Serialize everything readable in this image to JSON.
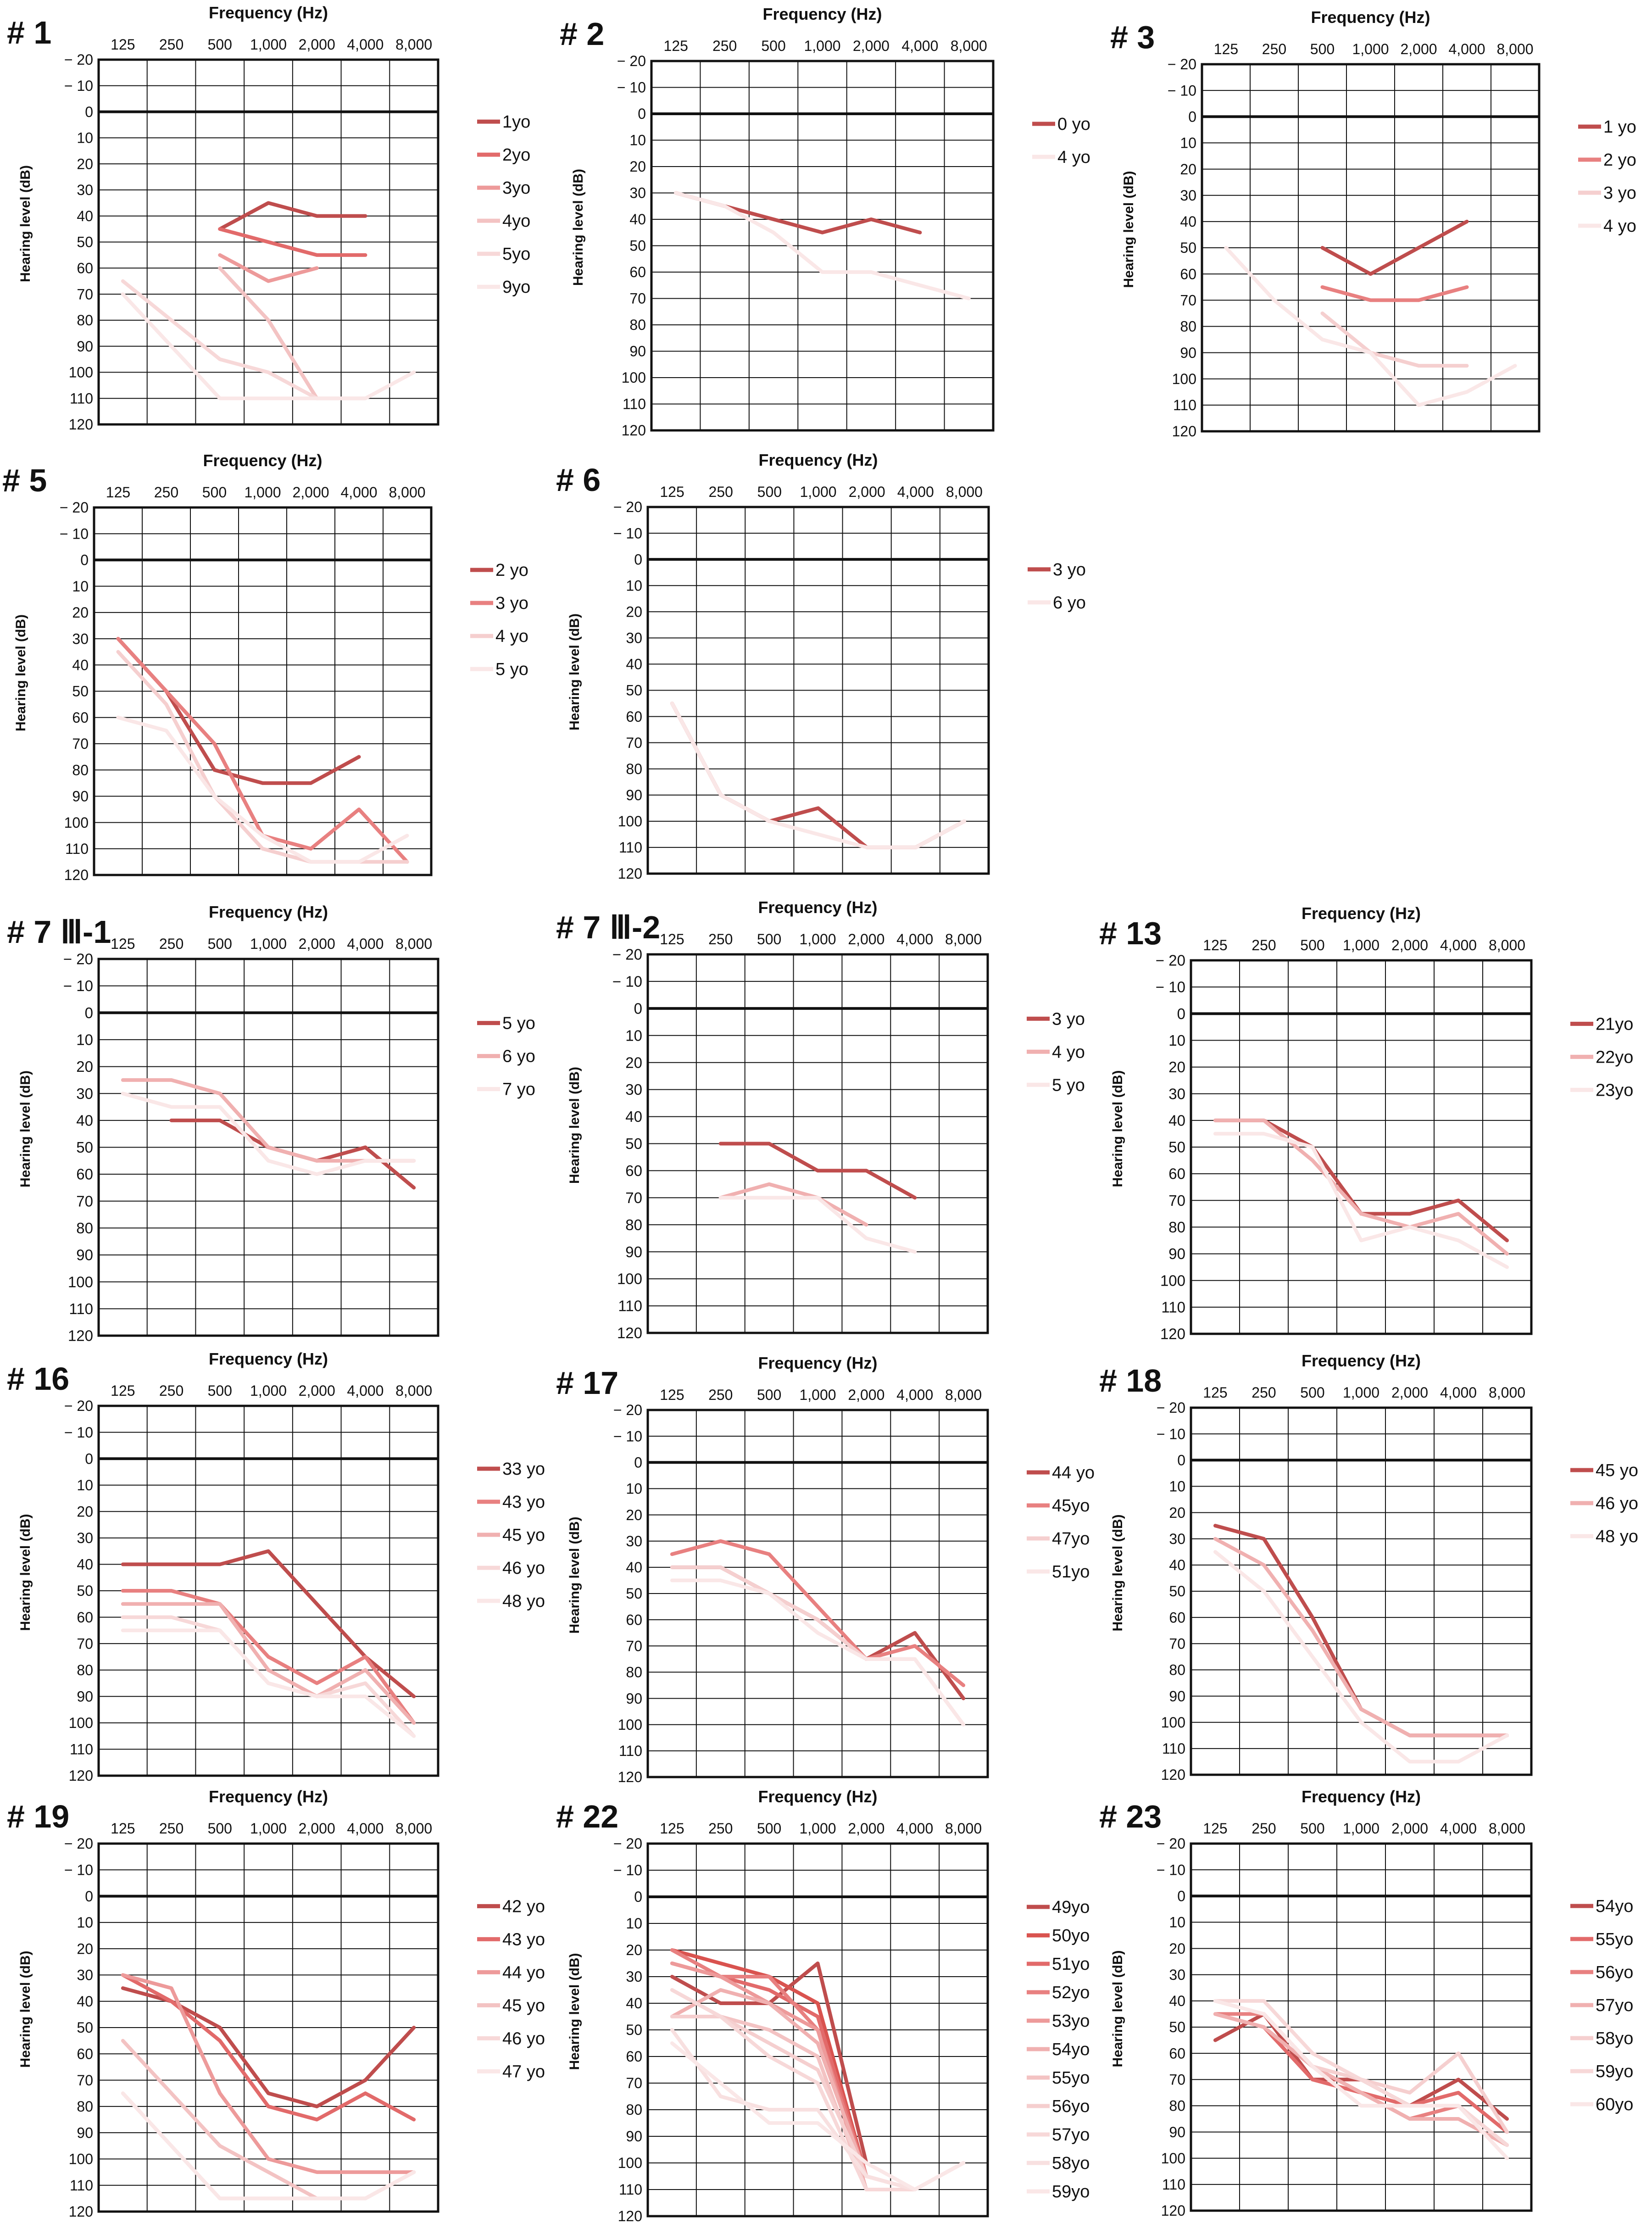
{
  "figure": {
    "common": {
      "xlabel": "Frequency (Hz)",
      "ylabel": "Hearing level (dB)",
      "x_ticks": [
        "125",
        "250",
        "500",
        "1,000",
        "2,000",
        "4,000",
        "8,000"
      ],
      "y_ticks": [
        "− 20",
        "− 10",
        "0",
        "10",
        "20",
        "30",
        "40",
        "50",
        "60",
        "70",
        "80",
        "90",
        "100",
        "110",
        "120"
      ],
      "ylim": [
        -20,
        120
      ]
    },
    "palette": [
      "#bf4d4d",
      "#d9534f",
      "#e26a6a",
      "#e88080",
      "#ed9a9a",
      "#f0b0b0",
      "#f3c3c3",
      "#f5cfcf",
      "#f7d8d8",
      "#f8e0e0",
      "#fae7e7"
    ]
  },
  "chart_data": [
    {
      "type": "line",
      "title": "# 1",
      "xlabel": "Frequency (Hz)",
      "ylabel": "Hearing level (dB)",
      "categories": [
        "125",
        "250",
        "500",
        "1,000",
        "2,000",
        "4,000",
        "8,000"
      ],
      "ylim": [
        -20,
        120
      ],
      "legend": "right",
      "series": [
        {
          "name": "1yo",
          "values": [
            null,
            null,
            45,
            35,
            40,
            40,
            null
          ]
        },
        {
          "name": "2yo",
          "values": [
            null,
            null,
            45,
            50,
            55,
            55,
            null
          ]
        },
        {
          "name": "3yo",
          "values": [
            null,
            null,
            55,
            65,
            60,
            null,
            null
          ]
        },
        {
          "name": "4yo",
          "values": [
            null,
            null,
            60,
            80,
            110,
            null,
            null
          ]
        },
        {
          "name": "5yo",
          "values": [
            65,
            80,
            95,
            100,
            110,
            110,
            null
          ]
        },
        {
          "name": "9yo",
          "values": [
            70,
            90,
            110,
            110,
            110,
            110,
            100
          ]
        }
      ]
    },
    {
      "type": "line",
      "title": "# 2",
      "xlabel": "Frequency (Hz)",
      "ylabel": "Hearing level (dB)",
      "categories": [
        "125",
        "250",
        "500",
        "1,000",
        "2,000",
        "4,000",
        "8,000"
      ],
      "ylim": [
        -20,
        120
      ],
      "legend": "right",
      "series": [
        {
          "name": "0 yo",
          "values": [
            30,
            35,
            40,
            45,
            40,
            45,
            null
          ]
        },
        {
          "name": "4 yo",
          "values": [
            30,
            35,
            45,
            60,
            60,
            65,
            70
          ]
        }
      ]
    },
    {
      "type": "line",
      "title": "# 3",
      "xlabel": "Frequency (Hz)",
      "ylabel": "Hearing level (dB)",
      "categories": [
        "125",
        "250",
        "500",
        "1,000",
        "2,000",
        "4,000",
        "8,000"
      ],
      "ylim": [
        -20,
        120
      ],
      "legend": "right",
      "series": [
        {
          "name": "1 yo",
          "values": [
            null,
            null,
            50,
            60,
            50,
            40,
            null
          ]
        },
        {
          "name": "2 yo",
          "values": [
            null,
            null,
            65,
            70,
            70,
            65,
            null
          ]
        },
        {
          "name": "3 yo",
          "values": [
            null,
            null,
            75,
            90,
            95,
            95,
            null
          ]
        },
        {
          "name": "4 yo",
          "values": [
            50,
            70,
            85,
            90,
            110,
            105,
            95
          ]
        }
      ]
    },
    {
      "type": "line",
      "title": "# 5",
      "xlabel": "Frequency (Hz)",
      "ylabel": "Hearing level (dB)",
      "categories": [
        "125",
        "250",
        "500",
        "1,000",
        "2,000",
        "4,000",
        "8,000"
      ],
      "ylim": [
        -20,
        120
      ],
      "legend": "right",
      "series": [
        {
          "name": "2 yo",
          "values": [
            30,
            50,
            80,
            85,
            85,
            75,
            null
          ]
        },
        {
          "name": "3 yo",
          "values": [
            30,
            50,
            70,
            105,
            110,
            95,
            115
          ]
        },
        {
          "name": "4 yo",
          "values": [
            35,
            55,
            90,
            110,
            115,
            115,
            115
          ]
        },
        {
          "name": "5 yo",
          "values": [
            60,
            65,
            90,
            105,
            115,
            115,
            105
          ]
        }
      ]
    },
    {
      "type": "line",
      "title": "# 6",
      "xlabel": "Frequency (Hz)",
      "ylabel": "Hearing level (dB)",
      "categories": [
        "125",
        "250",
        "500",
        "1,000",
        "2,000",
        "4,000",
        "8,000"
      ],
      "ylim": [
        -20,
        120
      ],
      "legend": "right",
      "series": [
        {
          "name": "3 yo",
          "values": [
            55,
            90,
            100,
            95,
            110,
            110,
            100
          ]
        },
        {
          "name": "6 yo",
          "values": [
            55,
            90,
            100,
            105,
            110,
            110,
            100
          ]
        }
      ]
    },
    {
      "type": "line",
      "title": "# 7 Ⅲ-1",
      "xlabel": "Frequency (Hz)",
      "ylabel": "Hearing level (dB)",
      "categories": [
        "125",
        "250",
        "500",
        "1,000",
        "2,000",
        "4,000",
        "8,000"
      ],
      "ylim": [
        -20,
        120
      ],
      "legend": "right",
      "series": [
        {
          "name": "5 yo",
          "values": [
            null,
            40,
            40,
            50,
            55,
            50,
            65
          ]
        },
        {
          "name": "6 yo",
          "values": [
            25,
            25,
            30,
            50,
            55,
            55,
            55
          ]
        },
        {
          "name": "7 yo",
          "values": [
            30,
            35,
            35,
            55,
            60,
            55,
            55
          ]
        }
      ]
    },
    {
      "type": "line",
      "title": "# 7 Ⅲ-2",
      "xlabel": "Frequency (Hz)",
      "ylabel": "Hearing level (dB)",
      "categories": [
        "125",
        "250",
        "500",
        "1,000",
        "2,000",
        "4,000",
        "8,000"
      ],
      "ylim": [
        -20,
        120
      ],
      "legend": "right",
      "series": [
        {
          "name": "3 yo",
          "values": [
            null,
            50,
            50,
            60,
            60,
            70,
            null
          ]
        },
        {
          "name": "4 yo",
          "values": [
            null,
            70,
            65,
            70,
            80,
            null,
            null
          ]
        },
        {
          "name": "5 yo",
          "values": [
            null,
            70,
            70,
            70,
            85,
            90,
            null
          ]
        }
      ]
    },
    {
      "type": "line",
      "title": "# 13",
      "xlabel": "Frequency (Hz)",
      "ylabel": "Hearing level (dB)",
      "categories": [
        "125",
        "250",
        "500",
        "1,000",
        "2,000",
        "4,000",
        "8,000"
      ],
      "ylim": [
        -20,
        120
      ],
      "legend": "right",
      "series": [
        {
          "name": "21yo",
          "values": [
            40,
            40,
            50,
            75,
            75,
            70,
            85
          ]
        },
        {
          "name": "22yo",
          "values": [
            40,
            40,
            55,
            75,
            80,
            75,
            90
          ]
        },
        {
          "name": "23yo",
          "values": [
            45,
            45,
            50,
            85,
            80,
            85,
            95
          ]
        }
      ]
    },
    {
      "type": "line",
      "title": "# 16",
      "xlabel": "Frequency (Hz)",
      "ylabel": "Hearing level (dB)",
      "categories": [
        "125",
        "250",
        "500",
        "1,000",
        "2,000",
        "4,000",
        "8,000"
      ],
      "ylim": [
        -20,
        120
      ],
      "legend": "right",
      "series": [
        {
          "name": "33 yo",
          "values": [
            40,
            40,
            40,
            35,
            55,
            75,
            90
          ]
        },
        {
          "name": "43 yo",
          "values": [
            50,
            50,
            55,
            75,
            85,
            75,
            100
          ]
        },
        {
          "name": "45 yo",
          "values": [
            55,
            55,
            55,
            80,
            90,
            80,
            100
          ]
        },
        {
          "name": "46 yo",
          "values": [
            60,
            60,
            65,
            85,
            90,
            85,
            105
          ]
        },
        {
          "name": "48 yo",
          "values": [
            65,
            65,
            65,
            85,
            90,
            90,
            105
          ]
        }
      ]
    },
    {
      "type": "line",
      "title": "# 17",
      "xlabel": "Frequency (Hz)",
      "ylabel": "Hearing level (dB)",
      "categories": [
        "125",
        "250",
        "500",
        "1,000",
        "2,000",
        "4,000",
        "8,000"
      ],
      "ylim": [
        -20,
        120
      ],
      "legend": "right",
      "series": [
        {
          "name": "44 yo",
          "values": [
            40,
            40,
            50,
            60,
            75,
            65,
            90
          ]
        },
        {
          "name": "45yo",
          "values": [
            35,
            30,
            35,
            55,
            75,
            70,
            85
          ]
        },
        {
          "name": "47yo",
          "values": [
            40,
            40,
            50,
            60,
            75,
            75,
            100
          ]
        },
        {
          "name": "51yo",
          "values": [
            45,
            45,
            50,
            65,
            75,
            75,
            100
          ]
        }
      ]
    },
    {
      "type": "line",
      "title": "# 18",
      "xlabel": "Frequency (Hz)",
      "ylabel": "Hearing level (dB)",
      "categories": [
        "125",
        "250",
        "500",
        "1,000",
        "2,000",
        "4,000",
        "8,000"
      ],
      "ylim": [
        -20,
        120
      ],
      "legend": "right",
      "series": [
        {
          "name": "45 yo",
          "values": [
            25,
            30,
            60,
            95,
            105,
            105,
            105
          ]
        },
        {
          "name": "46 yo",
          "values": [
            30,
            40,
            65,
            95,
            105,
            105,
            105
          ]
        },
        {
          "name": "48 yo",
          "values": [
            35,
            50,
            75,
            100,
            115,
            115,
            105
          ]
        }
      ]
    },
    {
      "type": "line",
      "title": "# 19",
      "xlabel": "Frequency (Hz)",
      "ylabel": "Hearing level (dB)",
      "categories": [
        "125",
        "250",
        "500",
        "1,000",
        "2,000",
        "4,000",
        "8,000"
      ],
      "ylim": [
        -20,
        120
      ],
      "legend": "right",
      "series": [
        {
          "name": "42 yo",
          "values": [
            35,
            40,
            50,
            75,
            80,
            70,
            50
          ]
        },
        {
          "name": "43 yo",
          "values": [
            30,
            40,
            55,
            80,
            85,
            75,
            85
          ]
        },
        {
          "name": "44 yo",
          "values": [
            30,
            35,
            75,
            100,
            105,
            105,
            105
          ]
        },
        {
          "name": "45 yo",
          "values": [
            55,
            75,
            95,
            105,
            115,
            115,
            105
          ]
        },
        {
          "name": "46 yo",
          "values": [
            75,
            95,
            115,
            115,
            115,
            115,
            105
          ]
        },
        {
          "name": "47 yo",
          "values": [
            75,
            95,
            115,
            115,
            115,
            115,
            105
          ]
        }
      ]
    },
    {
      "type": "line",
      "title": "# 22",
      "xlabel": "Frequency (Hz)",
      "ylabel": "Hearing level (dB)",
      "categories": [
        "125",
        "250",
        "500",
        "1,000",
        "2,000",
        "4,000",
        "8,000"
      ],
      "ylim": [
        -20,
        120
      ],
      "legend": "right",
      "series": [
        {
          "name": "49yo",
          "values": [
            30,
            40,
            40,
            25,
            100,
            null,
            null
          ]
        },
        {
          "name": "50yo",
          "values": [
            20,
            25,
            30,
            40,
            105,
            null,
            null
          ]
        },
        {
          "name": "51yo",
          "values": [
            25,
            30,
            35,
            45,
            105,
            null,
            null
          ]
        },
        {
          "name": "52yo",
          "values": [
            20,
            30,
            30,
            50,
            105,
            null,
            null
          ]
        },
        {
          "name": "53yo",
          "values": [
            25,
            30,
            40,
            50,
            110,
            null,
            null
          ]
        },
        {
          "name": "54yo",
          "values": [
            45,
            35,
            40,
            55,
            105,
            110,
            100
          ]
        },
        {
          "name": "55yo",
          "values": [
            35,
            45,
            50,
            60,
            110,
            null,
            null
          ]
        },
        {
          "name": "56yo",
          "values": [
            45,
            45,
            55,
            65,
            105,
            110,
            100
          ]
        },
        {
          "name": "57yo",
          "values": [
            35,
            45,
            60,
            70,
            110,
            110,
            null
          ]
        },
        {
          "name": "58yo",
          "values": [
            50,
            75,
            80,
            80,
            105,
            110,
            null
          ]
        },
        {
          "name": "59yo",
          "values": [
            55,
            70,
            85,
            85,
            100,
            110,
            100
          ]
        }
      ]
    },
    {
      "type": "line",
      "title": "# 23",
      "xlabel": "Frequency (Hz)",
      "ylabel": "Hearing level (dB)",
      "categories": [
        "125",
        "250",
        "500",
        "1,000",
        "2,000",
        "4,000",
        "8,000"
      ],
      "ylim": [
        -20,
        120
      ],
      "legend": "right",
      "series": [
        {
          "name": "54yo",
          "values": [
            55,
            45,
            70,
            70,
            80,
            70,
            85
          ]
        },
        {
          "name": "55yo",
          "values": [
            45,
            50,
            70,
            75,
            80,
            75,
            90
          ]
        },
        {
          "name": "56yo",
          "values": [
            45,
            45,
            65,
            75,
            85,
            80,
            95
          ]
        },
        {
          "name": "57yo",
          "values": [
            45,
            50,
            65,
            75,
            85,
            85,
            95
          ]
        },
        {
          "name": "58yo",
          "values": [
            40,
            45,
            65,
            70,
            75,
            60,
            90
          ]
        },
        {
          "name": "59yo",
          "values": [
            40,
            40,
            60,
            70,
            80,
            80,
            95
          ]
        },
        {
          "name": "60yo",
          "values": [
            40,
            45,
            65,
            80,
            80,
            80,
            100
          ]
        }
      ]
    }
  ]
}
